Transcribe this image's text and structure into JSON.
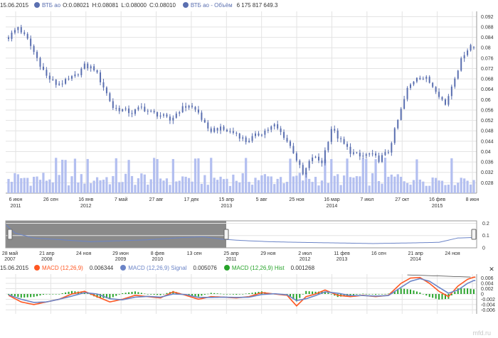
{
  "colors": {
    "candle": "#5a6fb0",
    "volume": "#b3bff0",
    "grid": "#e3e3e3",
    "macd": "#ff5722",
    "signal": "#6b84c7",
    "hist": "#27a32a",
    "navigator_fill": "#8a8a8a",
    "navigator_line": "#6b84c7"
  },
  "header": {
    "date": "15.06.2015",
    "series_name": "ВТБ ао",
    "o_label": "O:",
    "o_value": "0.08021",
    "h_label": "H:",
    "h_value": "0.08081",
    "l_label": "L:",
    "l_value": "0.08000",
    "c_label": "C:",
    "c_value": "0.08010",
    "volume_name": "ВТБ ао - Объём",
    "volume_value": "6 175 817 649.3"
  },
  "macd_legend": {
    "date": "15.06.2015",
    "macd_name": "MACD (12,26,9)",
    "macd_value": "0.006344",
    "signal_name": "MACD (12,26,9) Signal",
    "signal_value": "0.005076",
    "hist_name": "MACD (12,26,9) Hist",
    "hist_value": "0.001268"
  },
  "export_icon": "export-icon",
  "watermark": "mfd.ru",
  "chart_data": [
    {
      "type": "candlestick",
      "title": "ВТБ ао",
      "ylim": [
        0.024,
        0.094
      ],
      "y_ticks": [
        "0.092",
        "0.088",
        "0.084",
        "0.08",
        "0.076",
        "0.072",
        "0.068",
        "0.064",
        "0.06",
        "0.056",
        "0.052",
        "0.048",
        "0.044",
        "0.04",
        "0.036",
        "0.032",
        "0.028"
      ],
      "x_ticks": [
        {
          "label": "6 июн",
          "year": "2011"
        },
        {
          "label": "26 сен",
          "year": ""
        },
        {
          "label": "16 янв",
          "year": "2012"
        },
        {
          "label": "7 май",
          "year": ""
        },
        {
          "label": "27 авг",
          "year": ""
        },
        {
          "label": "17 дек",
          "year": ""
        },
        {
          "label": "15 апр",
          "year": "2013"
        },
        {
          "label": "5 авг",
          "year": ""
        },
        {
          "label": "25 ноя",
          "year": ""
        },
        {
          "label": "16 мар",
          "year": "2014"
        },
        {
          "label": "7 июл",
          "year": ""
        },
        {
          "label": "27 окт",
          "year": ""
        },
        {
          "label": "16 фев",
          "year": "2015"
        },
        {
          "label": "8 июн",
          "year": ""
        }
      ],
      "close_trajectory": [
        [
          0,
          0.084
        ],
        [
          3,
          0.088
        ],
        [
          6,
          0.083
        ],
        [
          9,
          0.076
        ],
        [
          12,
          0.069
        ],
        [
          15,
          0.066
        ],
        [
          18,
          0.067
        ],
        [
          21,
          0.069
        ],
        [
          24,
          0.073
        ],
        [
          27,
          0.072
        ],
        [
          30,
          0.065
        ],
        [
          33,
          0.057
        ],
        [
          36,
          0.056
        ],
        [
          39,
          0.055
        ],
        [
          42,
          0.057
        ],
        [
          45,
          0.055
        ],
        [
          48,
          0.054
        ],
        [
          51,
          0.052
        ],
        [
          54,
          0.056
        ],
        [
          57,
          0.058
        ],
        [
          60,
          0.055
        ],
        [
          63,
          0.048
        ],
        [
          66,
          0.049
        ],
        [
          69,
          0.048
        ],
        [
          72,
          0.047
        ],
        [
          75,
          0.044
        ],
        [
          78,
          0.046
        ],
        [
          81,
          0.048
        ],
        [
          84,
          0.05
        ],
        [
          87,
          0.046
        ],
        [
          90,
          0.04
        ],
        [
          93,
          0.031
        ],
        [
          96,
          0.038
        ],
        [
          99,
          0.036
        ],
        [
          102,
          0.049
        ],
        [
          105,
          0.044
        ],
        [
          108,
          0.04
        ],
        [
          111,
          0.038
        ],
        [
          114,
          0.039
        ],
        [
          117,
          0.037
        ],
        [
          120,
          0.04
        ],
        [
          123,
          0.052
        ],
        [
          126,
          0.064
        ],
        [
          129,
          0.069
        ],
        [
          132,
          0.068
        ],
        [
          135,
          0.064
        ],
        [
          138,
          0.058
        ],
        [
          141,
          0.069
        ],
        [
          144,
          0.078
        ],
        [
          146,
          0.081
        ],
        [
          147,
          0.0801
        ]
      ],
      "last_candle": {
        "open": 0.08021,
        "high": 0.08081,
        "low": 0.08,
        "close": 0.0801
      },
      "volume_series": {
        "name": "ВТБ ао - Объём",
        "last": 6175817649.3
      }
    },
    {
      "type": "area",
      "role": "navigator",
      "y_ticks": [
        "0.2",
        "0.1",
        "0"
      ],
      "x_ticks": [
        {
          "label": "28 май",
          "year": "2007"
        },
        {
          "label": "21 апр",
          "year": "2008"
        },
        {
          "label": "24 ноя",
          "year": ""
        },
        {
          "label": "29 июн",
          "year": "2009"
        },
        {
          "label": "8 фев",
          "year": "2010"
        },
        {
          "label": "13 сен",
          "year": ""
        },
        {
          "label": "25 апр",
          "year": "2011"
        },
        {
          "label": "29 ноя",
          "year": ""
        },
        {
          "label": "2 июл",
          "year": "2012"
        },
        {
          "label": "11 фев",
          "year": "2013"
        },
        {
          "label": "16 сен",
          "year": ""
        },
        {
          "label": "21 апр",
          "year": "2014"
        },
        {
          "label": "24 ноя",
          "year": ""
        }
      ],
      "trajectory": [
        [
          0,
          0.19
        ],
        [
          2,
          0.12
        ],
        [
          6,
          0.08
        ],
        [
          10,
          0.07
        ],
        [
          14,
          0.06
        ],
        [
          18,
          0.05
        ],
        [
          22,
          0.055
        ],
        [
          26,
          0.06
        ],
        [
          30,
          0.065
        ],
        [
          34,
          0.075
        ],
        [
          38,
          0.085
        ],
        [
          42,
          0.09
        ],
        [
          46,
          0.07
        ],
        [
          50,
          0.06
        ],
        [
          56,
          0.05
        ],
        [
          62,
          0.045
        ],
        [
          70,
          0.04
        ],
        [
          78,
          0.035
        ],
        [
          86,
          0.04
        ],
        [
          92,
          0.045
        ],
        [
          96,
          0.08
        ],
        [
          100,
          0.085
        ]
      ]
    },
    {
      "type": "line",
      "title": "MACD (12,26,9)",
      "ylim": [
        -0.0075,
        0.0075
      ],
      "y_ticks": [
        "0.006",
        "0.004",
        "0.002",
        "0",
        "-0.002",
        "-0.004",
        "-0.006"
      ],
      "series": [
        {
          "name": "MACD (12,26,9)",
          "last": 0.006344
        },
        {
          "name": "MACD (12,26,9) Signal",
          "last": 0.005076
        },
        {
          "name": "MACD (12,26,9) Hist",
          "last": 0.001268
        }
      ],
      "macd_trajectory": [
        [
          0,
          -0.0005
        ],
        [
          4,
          -0.003
        ],
        [
          8,
          -0.004
        ],
        [
          12,
          -0.003
        ],
        [
          16,
          -0.002
        ],
        [
          20,
          0.0
        ],
        [
          24,
          0.001
        ],
        [
          28,
          -0.001
        ],
        [
          32,
          -0.003
        ],
        [
          36,
          -0.002
        ],
        [
          40,
          -0.0005
        ],
        [
          44,
          -0.001
        ],
        [
          48,
          -0.0015
        ],
        [
          52,
          0.0008
        ],
        [
          56,
          -0.0005
        ],
        [
          60,
          -0.002
        ],
        [
          64,
          -0.001
        ],
        [
          68,
          -0.0012
        ],
        [
          72,
          -0.0015
        ],
        [
          76,
          -0.001
        ],
        [
          80,
          0.0005
        ],
        [
          84,
          0.0
        ],
        [
          88,
          -0.0005
        ],
        [
          91,
          -0.0045
        ],
        [
          94,
          -0.001
        ],
        [
          97,
          0.0
        ],
        [
          100,
          0.0015
        ],
        [
          104,
          -0.0005
        ],
        [
          108,
          -0.001
        ],
        [
          112,
          -0.0005
        ],
        [
          116,
          -0.001
        ],
        [
          120,
          -0.0005
        ],
        [
          124,
          0.004
        ],
        [
          127,
          0.006
        ],
        [
          130,
          0.0062
        ],
        [
          133,
          0.004
        ],
        [
          136,
          0.001
        ],
        [
          139,
          -0.001
        ],
        [
          142,
          0.003
        ],
        [
          145,
          0.0055
        ],
        [
          147,
          0.006344
        ]
      ],
      "signal_trajectory": [
        [
          0,
          -0.0003
        ],
        [
          4,
          -0.002
        ],
        [
          8,
          -0.0032
        ],
        [
          12,
          -0.003
        ],
        [
          16,
          -0.002
        ],
        [
          20,
          -0.0008
        ],
        [
          24,
          0.0005
        ],
        [
          28,
          0.0
        ],
        [
          32,
          -0.0018
        ],
        [
          36,
          -0.0022
        ],
        [
          40,
          -0.0012
        ],
        [
          44,
          -0.0009
        ],
        [
          48,
          -0.0012
        ],
        [
          52,
          0.0
        ],
        [
          56,
          -0.0002
        ],
        [
          60,
          -0.0013
        ],
        [
          64,
          -0.0013
        ],
        [
          68,
          -0.0012
        ],
        [
          72,
          -0.0013
        ],
        [
          76,
          -0.0012
        ],
        [
          80,
          -0.0002
        ],
        [
          84,
          0.0001
        ],
        [
          88,
          -0.0003
        ],
        [
          91,
          -0.0025
        ],
        [
          94,
          -0.0018
        ],
        [
          97,
          -0.0006
        ],
        [
          100,
          0.0008
        ],
        [
          104,
          0.0003
        ],
        [
          108,
          -0.0006
        ],
        [
          112,
          -0.0006
        ],
        [
          116,
          -0.0008
        ],
        [
          120,
          -0.0006
        ],
        [
          124,
          0.0025
        ],
        [
          127,
          0.0048
        ],
        [
          130,
          0.0058
        ],
        [
          133,
          0.0048
        ],
        [
          136,
          0.0025
        ],
        [
          139,
          0.0003
        ],
        [
          142,
          0.0015
        ],
        [
          145,
          0.004
        ],
        [
          147,
          0.005076
        ]
      ]
    }
  ]
}
